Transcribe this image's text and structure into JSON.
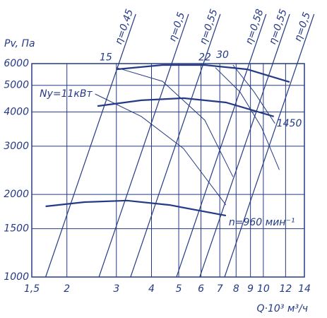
{
  "chart_data": {
    "type": "line",
    "x_label": "Q·10³ м³/ч",
    "y_label": "Pv, Па",
    "xscale": "log",
    "yscale": "log",
    "grid": true,
    "color": "#253a86",
    "xlim": [
      1.5,
      14
    ],
    "ylim": [
      1000,
      6000
    ],
    "xticks": [
      {
        "value": 1.5,
        "label": "1,5"
      },
      2,
      3,
      4,
      5,
      6,
      7,
      8,
      9,
      10,
      12,
      14
    ],
    "yticks": [
      1000,
      1500,
      2000,
      3000,
      4000,
      5000,
      6000
    ],
    "curves": [
      {
        "x": [
          3.0,
          4.38,
          6.19,
          8.77,
          12.4
        ],
        "values": [
          5720,
          5930,
          5930,
          5720,
          5140
        ]
      },
      {
        "name": "1450",
        "x": [
          2.57,
          3.68,
          5.2,
          7.36,
          10.9
        ],
        "values": [
          4200,
          4410,
          4490,
          4330,
          3850
        ]
      },
      {
        "name": "n=960 мин⁻¹",
        "x": [
          1.68,
          2.31,
          3.27,
          4.64,
          7.36
        ],
        "values": [
          1810,
          1875,
          1900,
          1830,
          1675
        ]
      }
    ],
    "power_lines": [
      {
        "name": "Ny=11кВт",
        "x": [
          2.52,
          3.68,
          5.2,
          7.36
        ],
        "values": [
          4650,
          3850,
          2940,
          1830
        ]
      },
      {
        "name": "15",
        "x": [
          3.0,
          4.38,
          6.19,
          7.8
        ],
        "values": [
          5800,
          5170,
          3730,
          2320
        ]
      },
      {
        "name": "22",
        "x": [
          6.75,
          8.26,
          9.84,
          11.4
        ],
        "values": [
          5800,
          4730,
          3520,
          2460
        ]
      },
      {
        "name": "30",
        "x": [
          7.8,
          9.27,
          11.0
        ],
        "values": [
          5930,
          4730,
          3630
        ]
      }
    ],
    "efficiency_lines": [
      {
        "name": "η=0,45",
        "x": [
          1.68,
          3.06
        ],
        "values": [
          1000,
          6000
        ]
      },
      {
        "name": "η=0,5",
        "x": [
          2.6,
          4.72
        ],
        "values": [
          1000,
          6000
        ]
      },
      {
        "name": "η=0,55",
        "x": [
          3.37,
          6.12
        ],
        "values": [
          1000,
          6000
        ]
      },
      {
        "name": "η=0,58",
        "x": [
          4.91,
          8.91
        ],
        "values": [
          1000,
          6000
        ]
      },
      {
        "name": "η=0,55",
        "x": [
          5.94,
          10.8
        ],
        "values": [
          1000,
          6000
        ]
      },
      {
        "name": "η=0,5",
        "x": [
          7.28,
          13.2
        ],
        "values": [
          1000,
          6000
        ]
      }
    ]
  }
}
